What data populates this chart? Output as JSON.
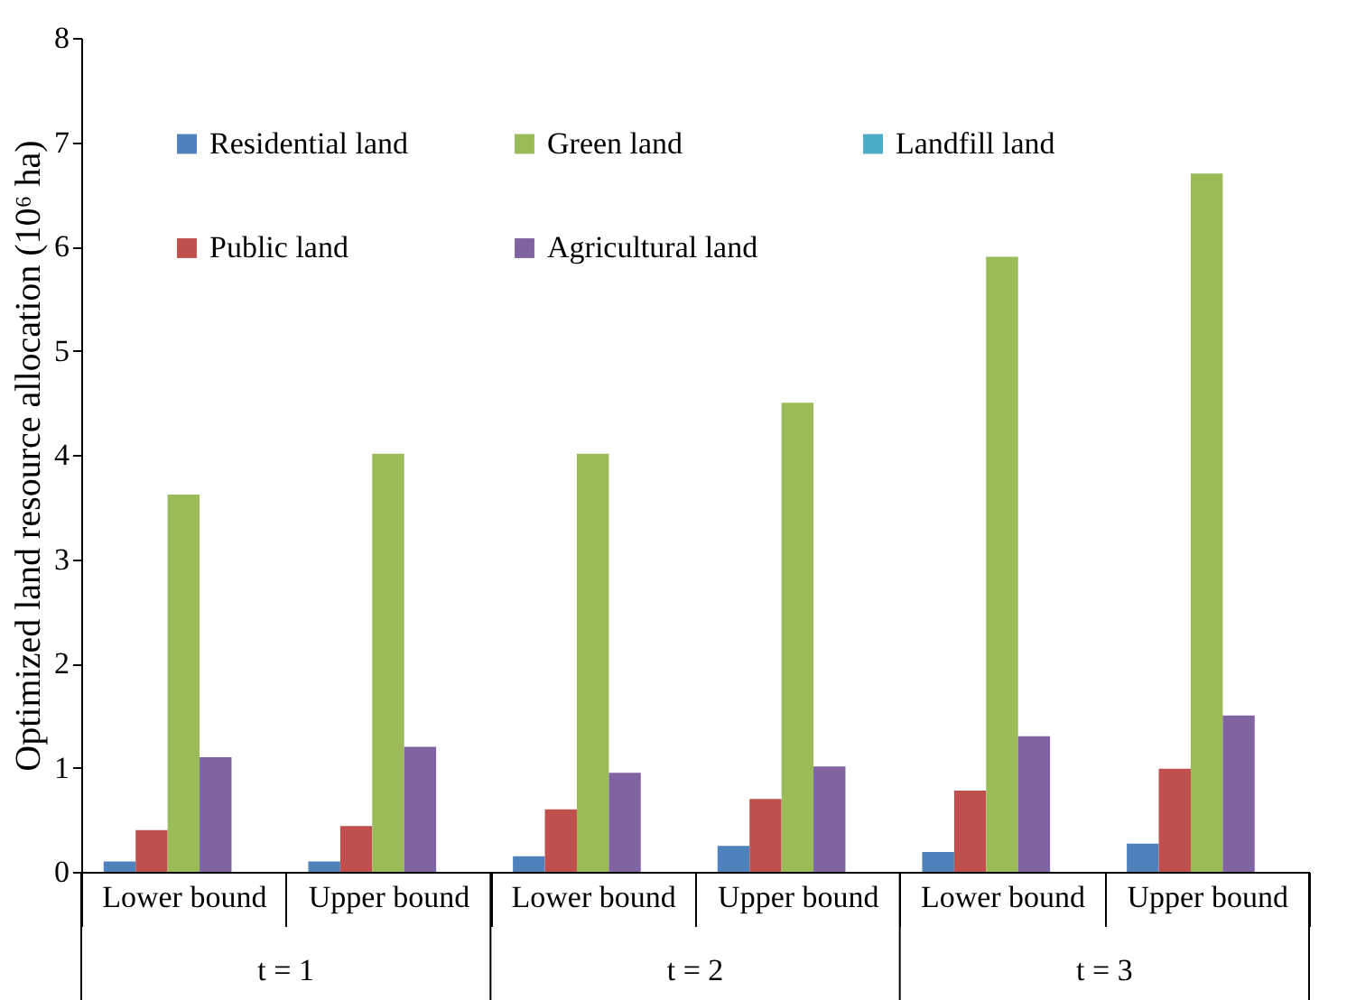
{
  "chart_data": {
    "type": "bar",
    "ylabel": "Optimized land resource allocation (10⁶ ha)",
    "categories": [
      "Lower bound",
      "Upper bound",
      "Lower bound",
      "Upper bound",
      "Lower bound",
      "Upper bound"
    ],
    "series": [
      {
        "name": "Residential land",
        "color": "#4f81bd",
        "values": [
          0.1,
          0.1,
          0.15,
          0.25,
          0.19,
          0.27
        ]
      },
      {
        "name": "Public land",
        "color": "#c0504d",
        "values": [
          0.4,
          0.44,
          0.6,
          0.7,
          0.78,
          0.99
        ]
      },
      {
        "name": "Green land",
        "color": "#9bbb59",
        "values": [
          3.62,
          4.01,
          4.01,
          4.5,
          5.9,
          6.7
        ]
      },
      {
        "name": "Agricultural land",
        "color": "#8064a2",
        "values": [
          1.1,
          1.2,
          0.95,
          1.01,
          1.3,
          1.5
        ]
      },
      {
        "name": "Landfill land",
        "color": "#4bacc6",
        "values": [
          0,
          0,
          0,
          0,
          0,
          0
        ]
      }
    ],
    "annotations": [
      "t = 1",
      "t = 2",
      "t = 3"
    ],
    "ylim": [
      0,
      8
    ],
    "yticks": [
      0,
      1,
      2,
      3,
      4,
      5,
      6,
      7,
      8
    ],
    "grid": false,
    "legend": "top left"
  }
}
